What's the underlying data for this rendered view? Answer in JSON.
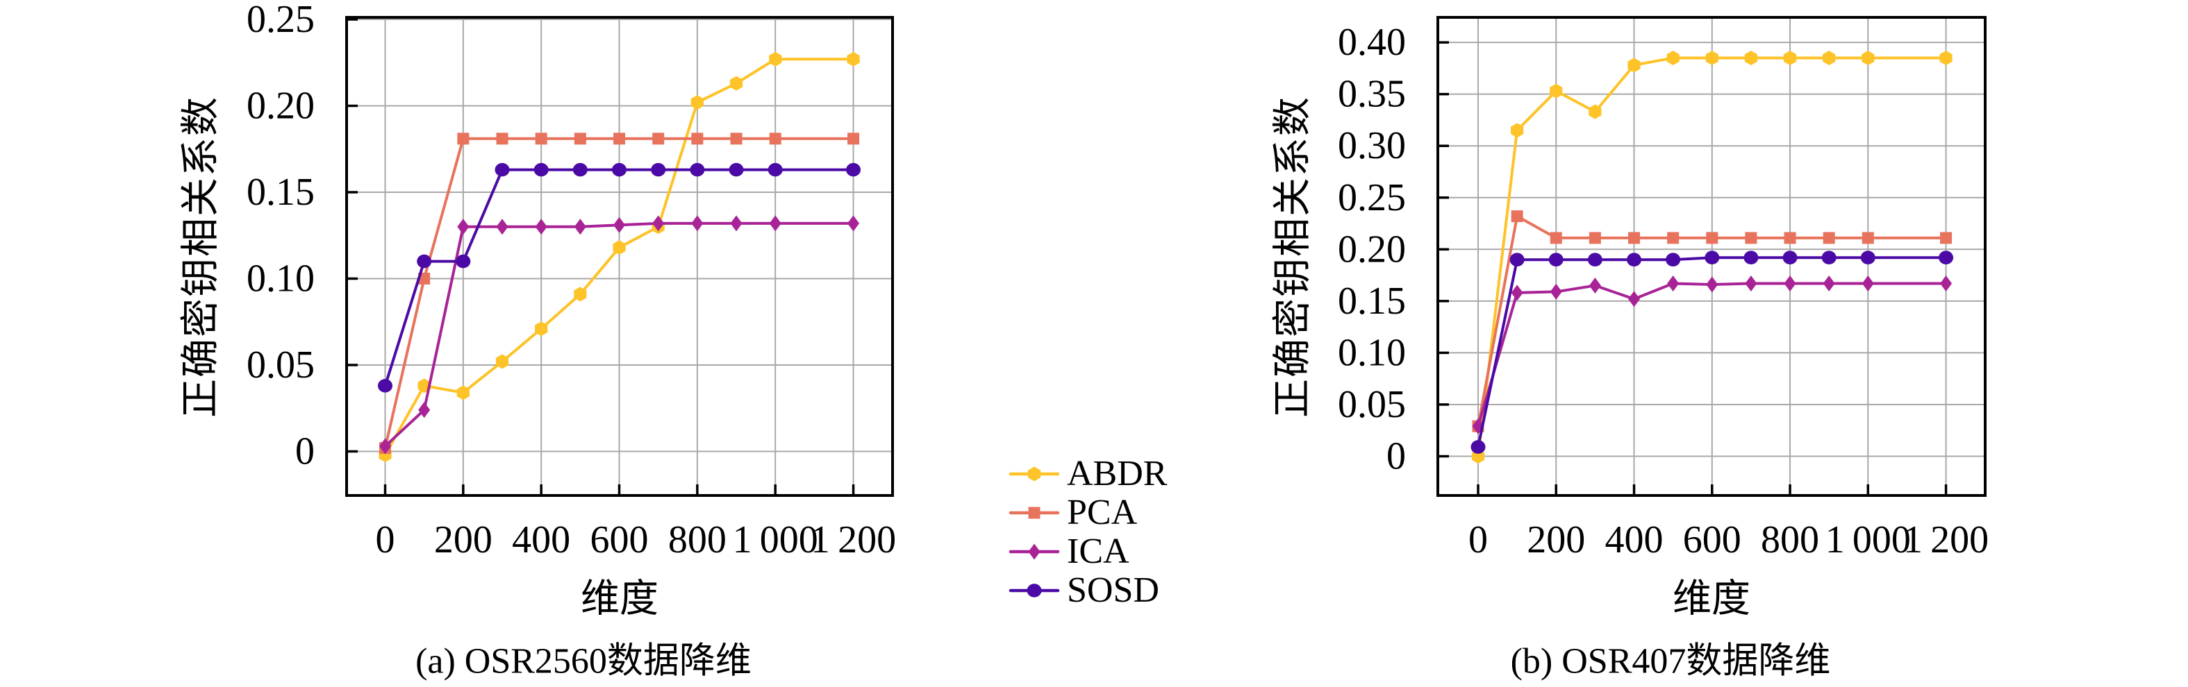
{
  "figure": {
    "background": "#ffffff",
    "grid_color": "#a8a8a8",
    "frame_color": "#000000"
  },
  "legend": {
    "position": "center-between-charts",
    "entries": [
      {
        "label": "ABDR",
        "color": "#FDC328",
        "marker": "hexagon"
      },
      {
        "label": "PCA",
        "color": "#E8735C",
        "marker": "square"
      },
      {
        "label": "ICA",
        "color": "#A82396",
        "marker": "diamond"
      },
      {
        "label": "SOSD",
        "color": "#4B0AA5",
        "marker": "circle"
      }
    ]
  },
  "chart_data": [
    {
      "id": "a",
      "type": "line",
      "title": "(a) OSR2560数据降维",
      "xlabel": "维度",
      "ylabel": "正确密钥相关系数",
      "grid": true,
      "xlim": [
        0,
        1200
      ],
      "ylim": [
        0,
        0.25
      ],
      "x": [
        0,
        100,
        200,
        300,
        400,
        500,
        600,
        700,
        800,
        900,
        1000,
        1200
      ],
      "series": [
        {
          "name": "ABDR",
          "color": "#FDC328",
          "marker": "hexagon",
          "values": [
            -0.002,
            0.038,
            0.034,
            0.052,
            0.071,
            0.091,
            0.118,
            0.13,
            0.202,
            0.213,
            0.227,
            0.227
          ]
        },
        {
          "name": "PCA",
          "color": "#E8735C",
          "marker": "square",
          "values": [
            0.002,
            0.1,
            0.181,
            0.181,
            0.181,
            0.181,
            0.181,
            0.181,
            0.181,
            0.181,
            0.181,
            0.181
          ]
        },
        {
          "name": "ICA",
          "color": "#A82396",
          "marker": "diamond",
          "values": [
            0.003,
            0.024,
            0.13,
            0.13,
            0.13,
            0.13,
            0.131,
            0.132,
            0.132,
            0.132,
            0.132,
            0.132
          ]
        },
        {
          "name": "SOSD",
          "color": "#4B0AA5",
          "marker": "circle",
          "values": [
            0.038,
            0.11,
            0.11,
            0.163,
            0.163,
            0.163,
            0.163,
            0.163,
            0.163,
            0.163,
            0.163,
            0.163
          ]
        }
      ],
      "x_ticks": {
        "values": [
          0,
          200,
          400,
          600,
          800,
          1000,
          1200
        ],
        "labels": [
          "0",
          "200",
          "400",
          "600",
          "800",
          "1 000",
          "1 200"
        ]
      },
      "y_ticks": {
        "values": [
          0,
          0.05,
          0.1,
          0.15,
          0.2,
          0.25
        ],
        "labels": [
          "0",
          "0.05",
          "0.10",
          "0.15",
          "0.20",
          "0.25"
        ]
      }
    },
    {
      "id": "b",
      "type": "line",
      "title": "(b) OSR407数据降维",
      "xlabel": "维度",
      "ylabel": "正确密钥相关系数",
      "grid": true,
      "xlim": [
        0,
        1200
      ],
      "ylim": [
        0,
        0.4
      ],
      "x": [
        0,
        100,
        200,
        300,
        400,
        500,
        600,
        700,
        800,
        900,
        1000,
        1200
      ],
      "series": [
        {
          "name": "ABDR",
          "color": "#FDC328",
          "marker": "hexagon",
          "values": [
            0.0,
            0.315,
            0.353,
            0.333,
            0.378,
            0.385,
            0.385,
            0.385,
            0.385,
            0.385,
            0.385,
            0.385
          ]
        },
        {
          "name": "PCA",
          "color": "#E8735C",
          "marker": "square",
          "values": [
            0.029,
            0.232,
            0.211,
            0.211,
            0.211,
            0.211,
            0.211,
            0.211,
            0.211,
            0.211,
            0.211,
            0.211
          ]
        },
        {
          "name": "ICA",
          "color": "#A82396",
          "marker": "diamond",
          "values": [
            0.029,
            0.158,
            0.159,
            0.165,
            0.152,
            0.167,
            0.166,
            0.167,
            0.167,
            0.167,
            0.167,
            0.167
          ]
        },
        {
          "name": "SOSD",
          "color": "#4B0AA5",
          "marker": "circle",
          "values": [
            0.009,
            0.19,
            0.19,
            0.19,
            0.19,
            0.19,
            0.192,
            0.192,
            0.192,
            0.192,
            0.192,
            0.192
          ]
        }
      ],
      "x_ticks": {
        "values": [
          0,
          200,
          400,
          600,
          800,
          1000,
          1200
        ],
        "labels": [
          "0",
          "200",
          "400",
          "600",
          "800",
          "1 000",
          "1 200"
        ]
      },
      "y_ticks": {
        "values": [
          0,
          0.05,
          0.1,
          0.15,
          0.2,
          0.25,
          0.3,
          0.35,
          0.4
        ],
        "labels": [
          "0",
          "0.05",
          "0.10",
          "0.15",
          "0.20",
          "0.25",
          "0.30",
          "0.35",
          "0.40"
        ]
      }
    }
  ]
}
